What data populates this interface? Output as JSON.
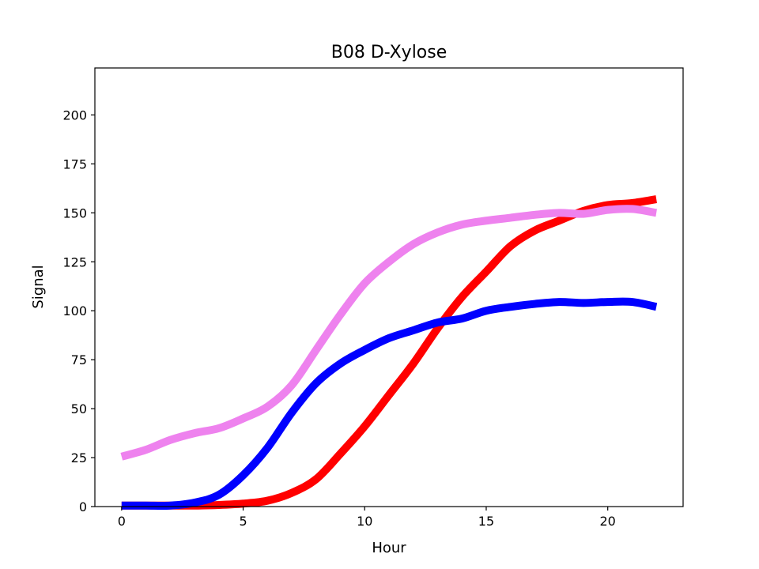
{
  "chart_data": {
    "type": "line",
    "title": "B08 D-Xylose",
    "xlabel": "Hour",
    "ylabel": "Signal",
    "xlim": [
      -1.1,
      23.1
    ],
    "ylim": [
      0,
      224
    ],
    "xticks": [
      0,
      5,
      10,
      15,
      20
    ],
    "yticks": [
      0,
      25,
      50,
      75,
      100,
      125,
      150,
      175,
      200
    ],
    "grid": false,
    "legend": "none",
    "x": [
      0,
      1,
      2,
      3,
      4,
      5,
      6,
      7,
      8,
      9,
      10,
      11,
      12,
      13,
      14,
      15,
      16,
      17,
      18,
      19,
      20,
      21,
      22
    ],
    "series": [
      {
        "color": "#ff0000",
        "values": [
          0.5,
          0.5,
          0.5,
          0.5,
          0.8,
          1.5,
          3,
          7,
          14,
          27,
          41,
          57,
          73,
          91,
          107,
          120,
          133,
          141,
          146,
          151,
          154,
          155,
          157
        ]
      },
      {
        "color": "#0000ff",
        "values": [
          0.5,
          0.5,
          0.5,
          2,
          6,
          16,
          30,
          48,
          63,
          73,
          80,
          86,
          90,
          94,
          96,
          100,
          102,
          103.5,
          104.5,
          104,
          104.5,
          104.5,
          102
        ]
      },
      {
        "color": "#ee82ee",
        "values": [
          25.5,
          29,
          34,
          37.5,
          40,
          45,
          51,
          62,
          80,
          98,
          114,
          125,
          134,
          140,
          144,
          146,
          147.5,
          149,
          150,
          149.5,
          151.5,
          152,
          150
        ]
      }
    ]
  }
}
